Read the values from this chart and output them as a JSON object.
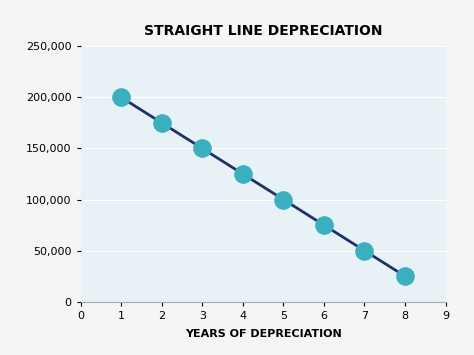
{
  "title": "STRAIGHT LINE DEPRECIATION",
  "xlabel": "YEARS OF DEPRECIATION",
  "x": [
    1,
    2,
    3,
    4,
    5,
    6,
    7,
    8
  ],
  "y": [
    200000,
    175000,
    150000,
    125000,
    100000,
    75000,
    50000,
    25000
  ],
  "xlim": [
    0,
    9
  ],
  "ylim": [
    0,
    250000
  ],
  "xticks": [
    0,
    1,
    2,
    3,
    4,
    5,
    6,
    7,
    8,
    9
  ],
  "yticks": [
    0,
    50000,
    100000,
    150000,
    200000,
    250000
  ],
  "line_color": "#1e3168",
  "marker_color": "#3aafc0",
  "bg_color": "#e8f1f5",
  "fig_color": "#f5f5f5",
  "title_fontsize": 10,
  "xlabel_fontsize": 8,
  "tick_fontsize": 8,
  "marker_size": 180,
  "line_width": 2.0
}
